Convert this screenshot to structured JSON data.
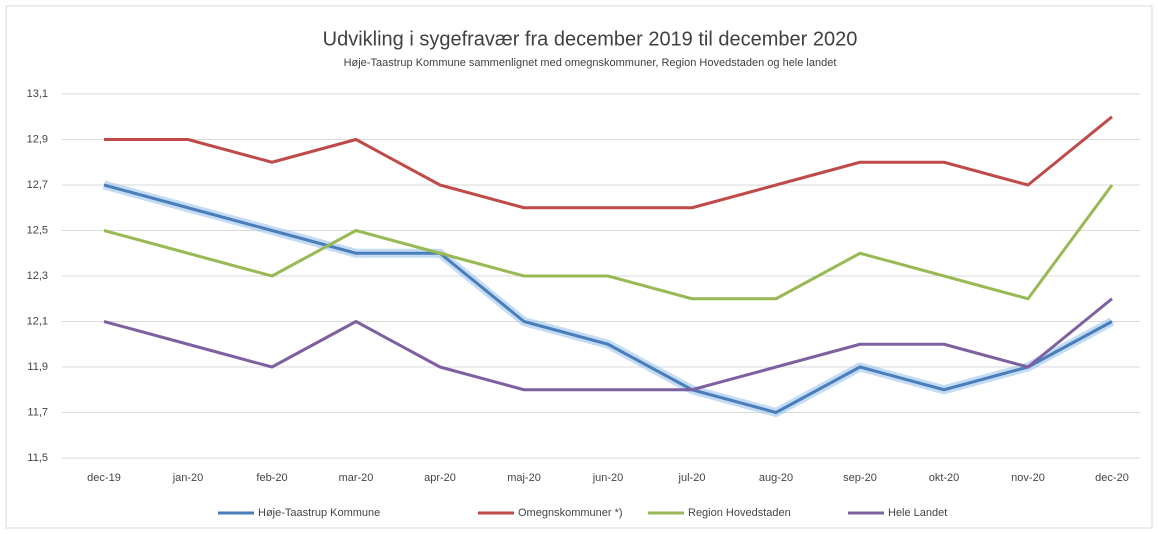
{
  "chart_data": {
    "type": "line",
    "title": "Udvikling i sygefravær fra december 2019 til december 2020",
    "subtitle": "Høje-Taastrup Kommune sammenlignet med omegnskommuner, Region Hovedstaden og hele landet",
    "categories": [
      "dec-19",
      "jan-20",
      "feb-20",
      "mar-20",
      "apr-20",
      "maj-20",
      "jun-20",
      "jul-20",
      "aug-20",
      "sep-20",
      "okt-20",
      "nov-20",
      "dec-20"
    ],
    "series": [
      {
        "name": "Høje-Taastrup Kommune",
        "color": "#4a7ebb",
        "values": [
          12.7,
          12.6,
          12.5,
          12.4,
          12.4,
          12.1,
          12.0,
          11.8,
          11.7,
          11.9,
          11.8,
          11.9,
          12.1
        ]
      },
      {
        "name": "Omegnskommuner *)",
        "color": "#be4b48",
        "values": [
          12.9,
          12.9,
          12.8,
          12.9,
          12.7,
          12.6,
          12.6,
          12.6,
          12.7,
          12.8,
          12.8,
          12.7,
          13.0
        ]
      },
      {
        "name": "Region Hovedstaden",
        "color": "#98b954",
        "values": [
          12.5,
          12.4,
          12.3,
          12.5,
          12.4,
          12.3,
          12.3,
          12.2,
          12.2,
          12.4,
          12.3,
          12.2,
          12.7
        ]
      },
      {
        "name": "Hele Landet",
        "color": "#7d60a0",
        "values": [
          12.1,
          12.0,
          11.9,
          12.1,
          11.9,
          11.8,
          11.8,
          11.8,
          11.9,
          12.0,
          12.0,
          11.9,
          12.2
        ]
      }
    ],
    "ylim": [
      11.5,
      13.1
    ],
    "yticks": [
      {
        "value": 11.5,
        "label": "11,5"
      },
      {
        "value": 11.7,
        "label": "11,7"
      },
      {
        "value": 11.9,
        "label": "11,9"
      },
      {
        "value": 12.1,
        "label": "12,1"
      },
      {
        "value": 12.3,
        "label": "12,3"
      },
      {
        "value": 12.5,
        "label": "12,5"
      },
      {
        "value": 12.7,
        "label": "12,7"
      },
      {
        "value": 12.9,
        "label": "12,9"
      },
      {
        "value": 13.1,
        "label": "13,1"
      }
    ],
    "grid": true,
    "legend": "bottom"
  }
}
